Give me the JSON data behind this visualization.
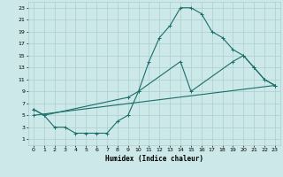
{
  "xlabel": "Humidex (Indice chaleur)",
  "bg_color": "#cce8e8",
  "grid_color": "#aacfcf",
  "line_color": "#1a6e6a",
  "xlim": [
    -0.5,
    23.5
  ],
  "ylim": [
    0,
    24
  ],
  "xticks": [
    0,
    1,
    2,
    3,
    4,
    5,
    6,
    7,
    8,
    9,
    10,
    11,
    12,
    13,
    14,
    15,
    16,
    17,
    18,
    19,
    20,
    21,
    22,
    23
  ],
  "yticks": [
    1,
    3,
    5,
    7,
    9,
    11,
    13,
    15,
    17,
    19,
    21,
    23
  ],
  "line1_x": [
    0,
    1,
    2,
    3,
    4,
    5,
    6,
    7,
    8,
    9,
    10,
    11,
    12,
    13,
    14,
    15,
    16,
    17,
    18,
    19,
    20,
    21,
    22,
    23
  ],
  "line1_y": [
    6,
    5,
    3,
    3,
    2,
    2,
    2,
    2,
    4,
    5,
    9,
    14,
    18,
    20,
    23,
    23,
    22,
    19,
    18,
    16,
    15,
    13,
    11,
    10
  ],
  "line2_x": [
    0,
    1,
    9,
    10,
    14,
    15,
    19,
    20,
    21,
    22,
    23
  ],
  "line2_y": [
    6,
    5,
    8,
    9,
    14,
    9,
    14,
    15,
    13,
    11,
    10
  ],
  "line3_x": [
    0,
    23
  ],
  "line3_y": [
    5,
    10
  ]
}
